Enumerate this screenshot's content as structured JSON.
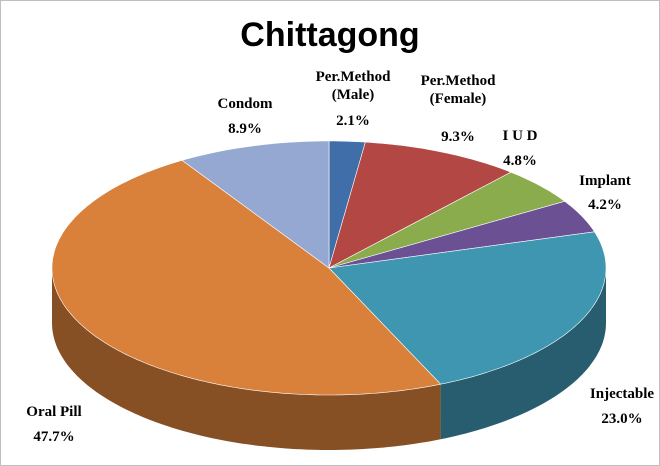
{
  "chart_data": {
    "type": "pie",
    "title": "Chittagong",
    "categories": [
      "Per.Method (Male)",
      "Per.Method (Female)",
      "I U D",
      "Implant",
      "Injectable",
      "Oral Pill",
      "Condom"
    ],
    "values": [
      2.1,
      9.3,
      4.8,
      4.2,
      23.0,
      47.7,
      8.9
    ],
    "value_labels": [
      "2.1%",
      "9.3%",
      "4.8%",
      "4.2%",
      "23.0%",
      "47.7%",
      "8.9%"
    ],
    "colors": [
      "#3f6ea8",
      "#b24744",
      "#8aac4c",
      "#6b5194",
      "#3f96b1",
      "#d9803a",
      "#94a8d2"
    ]
  }
}
